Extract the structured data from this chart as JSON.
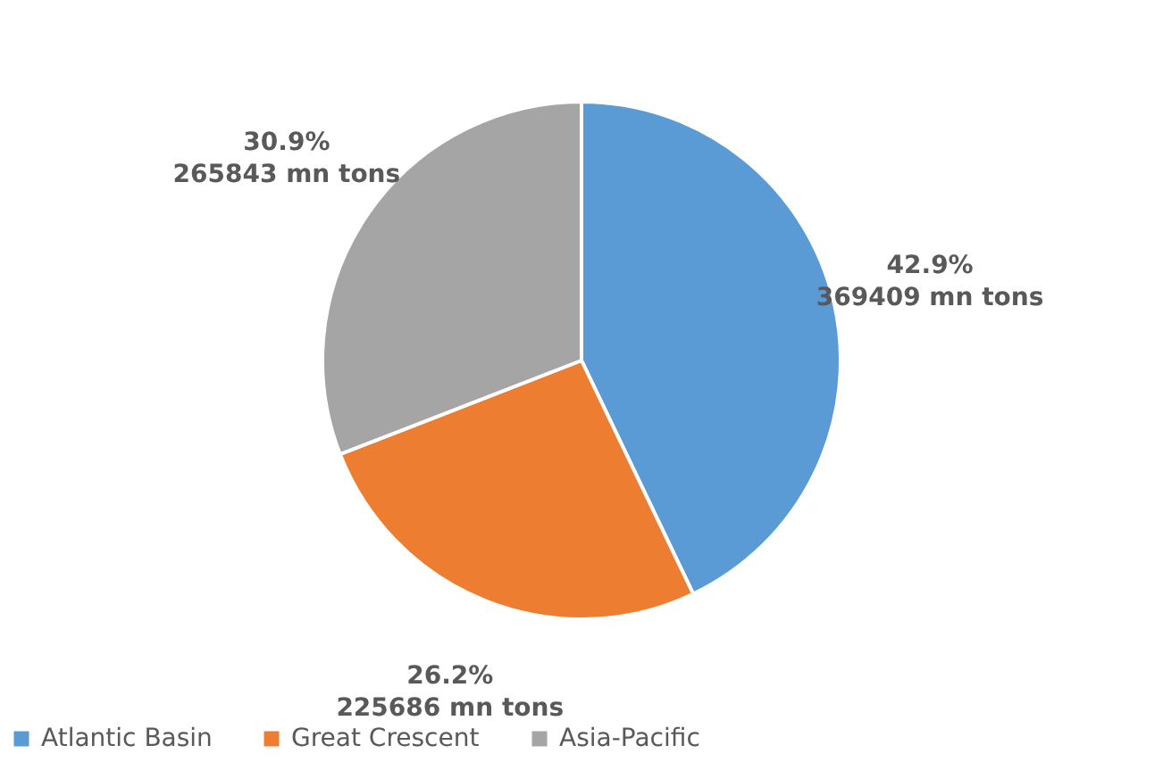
{
  "chart_data": {
    "type": "pie",
    "categories": [
      "Atlantic Basin",
      "Great Crescent",
      "Asia-Pacific"
    ],
    "values": [
      42.9,
      26.2,
      30.9
    ],
    "colors": [
      "#5b9bd5",
      "#ed7d31",
      "#a5a5a5"
    ],
    "value_labels": [
      "42.9%",
      "26.2%",
      "30.9%"
    ],
    "annotations": [
      {
        "text": "369409 mn tons",
        "x": "Atlantic Basin"
      },
      {
        "text": "225686 mn tons",
        "x": "Great Crescent"
      },
      {
        "text": "265843 mn tons",
        "x": "Asia-Pacific"
      }
    ],
    "legend": "bottom"
  }
}
